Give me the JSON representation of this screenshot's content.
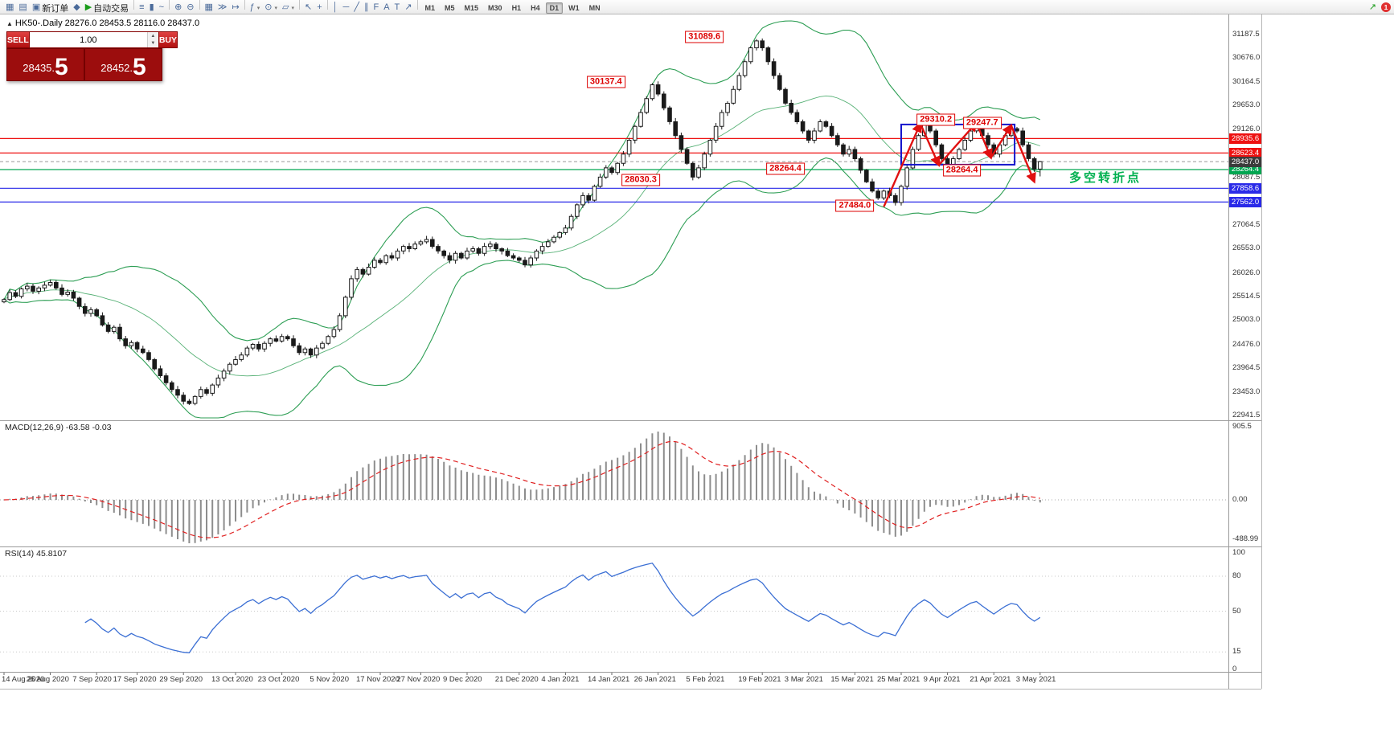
{
  "toolbar": {
    "items": [
      {
        "name": "new-chart-icon",
        "glyph": "▦"
      },
      {
        "name": "profiles-icon",
        "glyph": "▤"
      },
      {
        "name": "new-order-button",
        "glyph": "▣",
        "label": "新订单"
      },
      {
        "name": "metaeditor-icon",
        "glyph": "◆"
      },
      {
        "name": "autotrading-button",
        "glyph": "▶",
        "glyph_color": "#1a9c1a",
        "label": "自动交易"
      },
      {
        "sep": true
      },
      {
        "name": "bar-chart-icon",
        "glyph": "≡"
      },
      {
        "name": "candlestick-chart-icon",
        "glyph": "▮"
      },
      {
        "name": "line-chart-icon",
        "glyph": "~"
      },
      {
        "sep": true
      },
      {
        "name": "zoom-in-icon",
        "glyph": "⊕"
      },
      {
        "name": "zoom-out-icon",
        "glyph": "⊖"
      },
      {
        "sep": true
      },
      {
        "name": "tile-windows-icon",
        "glyph": "▦"
      },
      {
        "name": "auto-scroll-icon",
        "glyph": "≫"
      },
      {
        "name": "chart-shift-icon",
        "glyph": "↦"
      },
      {
        "sep": true
      },
      {
        "name": "indicators-icon",
        "glyph": "ƒ",
        "dropdown": true
      },
      {
        "name": "periods-icon",
        "glyph": "⊙",
        "dropdown": true
      },
      {
        "name": "templates-icon",
        "glyph": "▱",
        "dropdown": true
      },
      {
        "sep": true
      },
      {
        "name": "cursor-icon",
        "glyph": "↖"
      },
      {
        "name": "crosshair-icon",
        "glyph": "+"
      },
      {
        "sep": true
      },
      {
        "name": "vertical-line-icon",
        "glyph": "│"
      },
      {
        "name": "horizontal-line-icon",
        "glyph": "─"
      },
      {
        "name": "trendline-icon",
        "glyph": "╱"
      },
      {
        "name": "channel-icon",
        "glyph": "∥"
      },
      {
        "name": "fibonacci-icon",
        "glyph": "F"
      },
      {
        "name": "text-icon",
        "glyph": "A"
      },
      {
        "name": "label-icon",
        "glyph": "T"
      },
      {
        "name": "arrows-icon",
        "glyph": "↗"
      },
      {
        "sep": true
      }
    ],
    "timeframes": [
      "M1",
      "M5",
      "M15",
      "M30",
      "H1",
      "H4",
      "D1",
      "W1",
      "MN"
    ],
    "active_timeframe": "D1",
    "right": {
      "badge": "1",
      "alert_glyph": "↗"
    }
  },
  "chart": {
    "title": "HK50-.Daily 28276.0 28453.5 28116.0 28437.0",
    "one_click": {
      "sell": "SELL",
      "buy": "BUY",
      "volume": "1.00",
      "sell_price_small": "28435.",
      "sell_price_big": "5",
      "buy_price_small": "28452.",
      "buy_price_big": "5"
    },
    "note": {
      "text": "多空转折点",
      "color": "#00b050"
    }
  },
  "chart_data": {
    "type": "candlestick",
    "symbol": "HK50",
    "timeframe": "Daily",
    "first_open": 25400,
    "closes": [
      25450,
      25600,
      25520,
      25680,
      25740,
      25630,
      25700,
      25760,
      25820,
      25700,
      25560,
      25610,
      25480,
      25300,
      25150,
      25230,
      25100,
      24900,
      24760,
      24850,
      24600,
      24450,
      24520,
      24380,
      24300,
      24150,
      23950,
      23800,
      23650,
      23500,
      23380,
      23250,
      23200,
      23350,
      23500,
      23420,
      23600,
      23750,
      23900,
      24050,
      24150,
      24250,
      24400,
      24480,
      24380,
      24500,
      24600,
      24550,
      24650,
      24600,
      24450,
      24300,
      24380,
      24250,
      24400,
      24500,
      24650,
      24800,
      25100,
      25500,
      25900,
      26100,
      26000,
      26150,
      26300,
      26250,
      26400,
      26350,
      26500,
      26600,
      26550,
      26650,
      26700,
      26750,
      26600,
      26500,
      26400,
      26300,
      26450,
      26350,
      26500,
      26550,
      26450,
      26600,
      26650,
      26550,
      26500,
      26400,
      26350,
      26300,
      26200,
      26350,
      26500,
      26600,
      26700,
      26800,
      26900,
      27000,
      27250,
      27500,
      27700,
      27600,
      27900,
      28100,
      28300,
      28200,
      28400,
      28600,
      28900,
      29200,
      29500,
      29800,
      30100,
      29900,
      29600,
      29300,
      29000,
      28700,
      28400,
      28100,
      28300,
      28600,
      28900,
      29200,
      29500,
      29700,
      30000,
      30300,
      30600,
      30900,
      31050,
      30900,
      30600,
      30300,
      30000,
      29700,
      29500,
      29300,
      29100,
      28900,
      29100,
      29300,
      29200,
      29000,
      28800,
      28600,
      28700,
      28500,
      28250,
      28000,
      27800,
      27650,
      27800,
      27700,
      27550,
      27900,
      28300,
      28700,
      29000,
      29250,
      29100,
      28800,
      28500,
      28300,
      28500,
      28700,
      28900,
      29100,
      29200,
      29000,
      28800,
      28600,
      28800,
      29000,
      29150,
      29100,
      28800,
      28500,
      28276,
      28437
    ],
    "overrides": {
      "112": {
        "h": 30137.4
      },
      "119": {
        "l": 28030.3
      },
      "130": {
        "h": 31089.6
      },
      "154": {
        "l": 27484.0
      },
      "159": {
        "h": 29310.2
      },
      "163": {
        "l": 28264.4
      },
      "168": {
        "h": 29247.7
      },
      "179": {
        "o": 28276.0,
        "h": 28453.5,
        "l": 28116.0,
        "c": 28437.0
      }
    },
    "bollinger": {
      "period": 20,
      "deviation": 2,
      "color": "#2d9e54"
    },
    "hlines": [
      {
        "label": "28935.6",
        "price": 28935.6,
        "color": "#ee1111"
      },
      {
        "label": "28623.4",
        "price": 28623.4,
        "color": "#ee1111"
      },
      {
        "label": "28264.4",
        "price": 28264.4,
        "color": "#00a651"
      },
      {
        "label": "27858.6",
        "price": 27858.6,
        "color": "#2a2ae8"
      },
      {
        "label": "27562.0",
        "price": 27562.0,
        "color": "#2a2ae8"
      }
    ],
    "current_price": {
      "label": "28437.0",
      "price": 28437.0,
      "chip_bg": "#3c3c3c"
    },
    "annotations": [
      {
        "text": "31089.6",
        "ci": 121,
        "price": 31140
      },
      {
        "text": "30137.4",
        "ci": 104,
        "price": 30160
      },
      {
        "text": "29310.2",
        "ci": 161,
        "price": 29345
      },
      {
        "text": "29247.7",
        "ci": 169,
        "price": 29270
      },
      {
        "text": "28264.4",
        "ci": 135,
        "price": 28285
      },
      {
        "text": "28030.3",
        "ci": 110,
        "price": 28040
      },
      {
        "text": "27484.0",
        "ci": 147,
        "price": 27490
      },
      {
        "text": "28264.4",
        "ci": 165.5,
        "price": 28245
      }
    ],
    "box": {
      "ci1": 155,
      "price_top": 29240,
      "ci2": 174.6,
      "price_bottom": 28370,
      "color": "#1515cc"
    },
    "arrow_path": [
      [
        152,
        27460
      ],
      [
        158.3,
        29260
      ],
      [
        161.5,
        28360
      ],
      [
        168,
        29280
      ],
      [
        170.5,
        28520
      ],
      [
        174,
        29220
      ],
      [
        178,
        28000
      ]
    ],
    "arrow_color": "#e01010",
    "y_ticks": [
      {
        "label": "31187.5",
        "price": 31187.5
      },
      {
        "label": "30676.0",
        "price": 30676.0
      },
      {
        "label": "30164.5",
        "price": 30164.5
      },
      {
        "label": "29653.0",
        "price": 29653.0
      },
      {
        "label": "29126.0",
        "price": 29126.0
      },
      {
        "label": "28087.5",
        "price": 28087.5
      },
      {
        "label": "27064.5",
        "price": 27064.5
      },
      {
        "label": "26553.0",
        "price": 26553.0
      },
      {
        "label": "26026.0",
        "price": 26026.0
      },
      {
        "label": "25514.5",
        "price": 25514.5
      },
      {
        "label": "25003.0",
        "price": 25003.0
      },
      {
        "label": "24476.0",
        "price": 24476.0
      },
      {
        "label": "23964.5",
        "price": 23964.5
      },
      {
        "label": "23453.0",
        "price": 23453.0
      },
      {
        "label": "22941.5",
        "price": 22941.5
      }
    ],
    "dates": [
      {
        "label": "14 Aug 2020",
        "ci": 0
      },
      {
        "label": "26 Aug 2020",
        "ci": 8
      },
      {
        "label": "7 Sep 2020",
        "ci": 16
      },
      {
        "label": "17 Sep 2020",
        "ci": 23
      },
      {
        "label": "29 Sep 2020",
        "ci": 31
      },
      {
        "label": "13 Oct 2020",
        "ci": 40
      },
      {
        "label": "23 Oct 2020",
        "ci": 48
      },
      {
        "label": "5 Nov 2020",
        "ci": 57
      },
      {
        "label": "17 Nov 2020",
        "ci": 65
      },
      {
        "label": "27 Nov 2020",
        "ci": 72
      },
      {
        "label": "9 Dec 2020",
        "ci": 80
      },
      {
        "label": "21 Dec 2020",
        "ci": 89
      },
      {
        "label": "4 Jan 2021",
        "ci": 97
      },
      {
        "label": "14 Jan 2021",
        "ci": 105
      },
      {
        "label": "26 Jan 2021",
        "ci": 113
      },
      {
        "label": "5 Feb 2021",
        "ci": 122
      },
      {
        "label": "19 Feb 2021",
        "ci": 131
      },
      {
        "label": "3 Mar 2021",
        "ci": 139
      },
      {
        "label": "15 Mar 2021",
        "ci": 147
      },
      {
        "label": "25 Mar 2021",
        "ci": 155
      },
      {
        "label": "9 Apr 2021",
        "ci": 163
      },
      {
        "label": "21 Apr 2021",
        "ci": 171
      },
      {
        "label": "3 May 2021",
        "ci": 179
      }
    ],
    "macd": {
      "name": "MACD(12,26,9)",
      "values": "-63.58 -0.03",
      "ticks": [
        {
          "label": "905.5",
          "v": 905.5
        },
        {
          "label": "0.00",
          "v": 0
        },
        {
          "label": "-488.99",
          "v": -488.99
        }
      ]
    },
    "rsi": {
      "name": "RSI(14)",
      "value": "45.8107",
      "ticks": [
        {
          "label": "100",
          "v": 100
        },
        {
          "label": "80",
          "v": 80
        },
        {
          "label": "50",
          "v": 50
        },
        {
          "label": "15",
          "v": 15
        },
        {
          "label": "0",
          "v": 0
        }
      ],
      "levels": [
        80,
        50,
        15
      ]
    }
  }
}
